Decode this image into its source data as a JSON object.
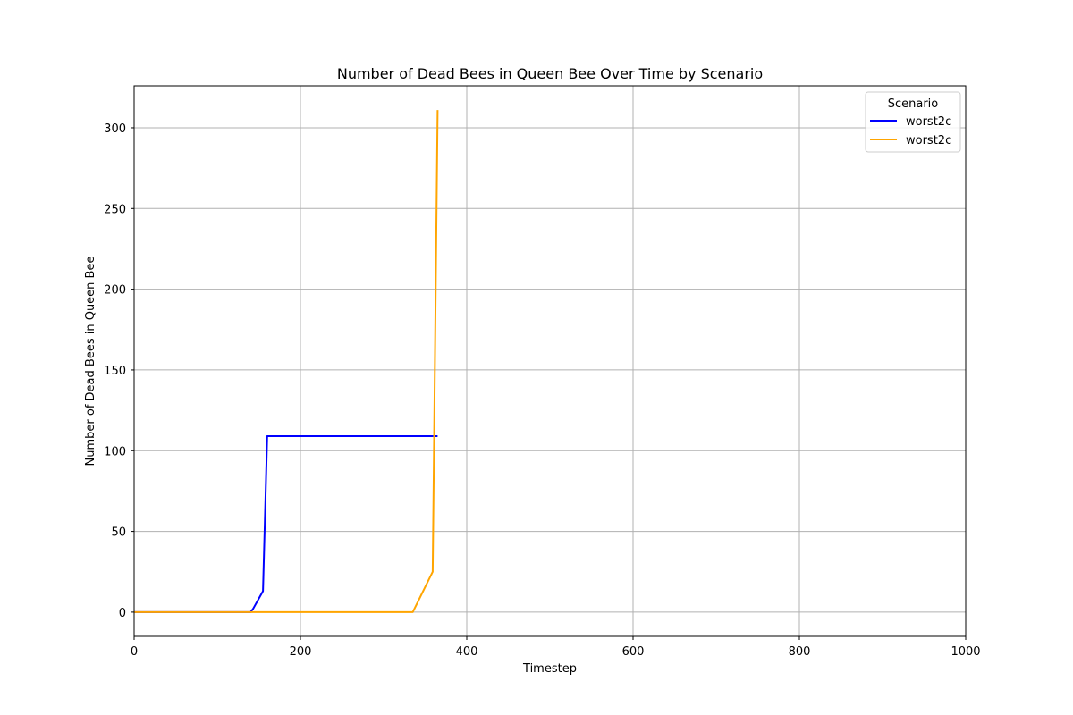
{
  "chart_data": {
    "type": "line",
    "title": "Number of Dead Bees in Queen Bee Over Time by Scenario",
    "xlabel": "Timestep",
    "ylabel": "Number of Dead Bees in Queen Bee",
    "xlim": [
      0,
      1000
    ],
    "ylim": [
      -15,
      326
    ],
    "xticks": [
      0,
      200,
      400,
      600,
      800,
      1000
    ],
    "yticks": [
      0,
      50,
      100,
      150,
      200,
      250,
      300
    ],
    "grid": true,
    "legend": {
      "title": "Scenario",
      "placement": "top-right"
    },
    "series": [
      {
        "name": "worst2c",
        "color": "#0000ff",
        "x": [
          0,
          140,
          143,
          155,
          160,
          365
        ],
        "y": [
          0,
          0,
          2,
          13,
          109,
          109
        ]
      },
      {
        "name": "worst2c",
        "color": "#ffa500",
        "x": [
          0,
          335,
          359,
          365
        ],
        "y": [
          0,
          0,
          25,
          311
        ]
      }
    ]
  }
}
